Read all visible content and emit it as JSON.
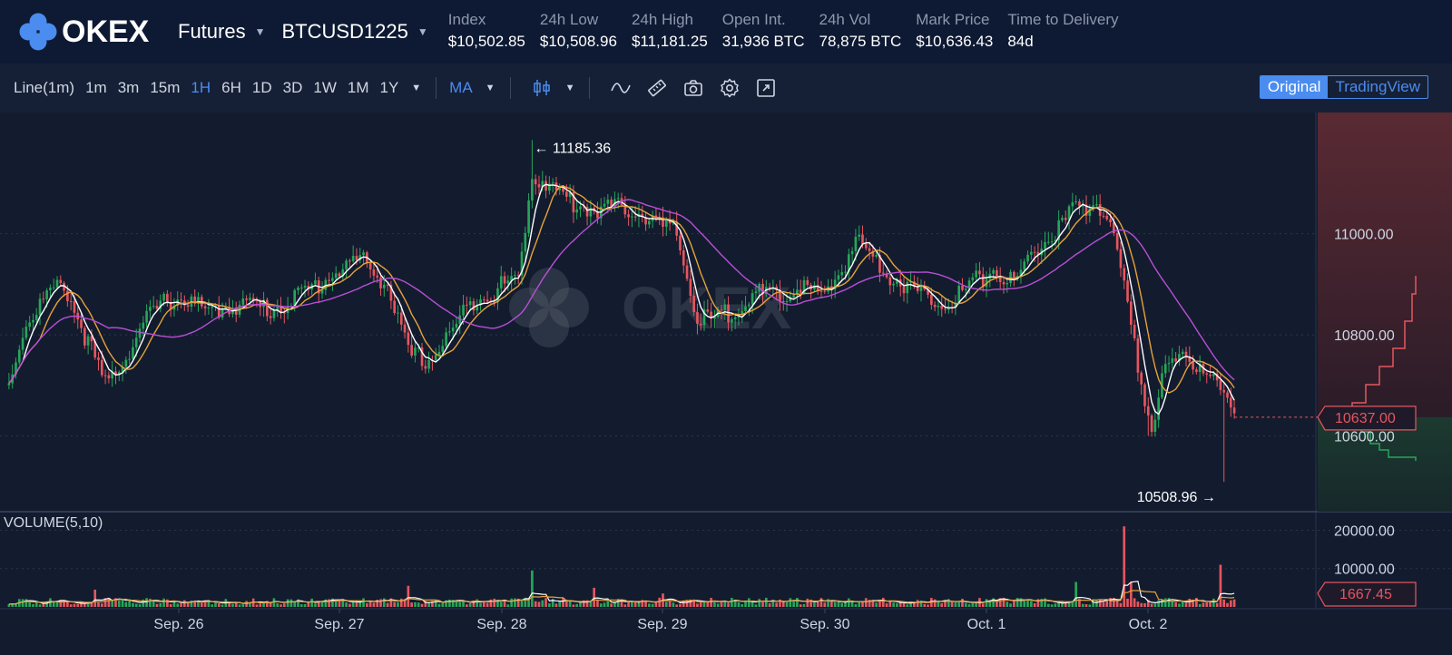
{
  "brand": {
    "name": "OKEX"
  },
  "header": {
    "product": "Futures",
    "contract": "BTCUSD1225",
    "stats": [
      {
        "label": "Index",
        "value": "$10,502.85"
      },
      {
        "label": "24h Low",
        "value": "$10,508.96"
      },
      {
        "label": "24h High",
        "value": "$11,181.25"
      },
      {
        "label": "Open Int.",
        "value": "31,936 BTC"
      },
      {
        "label": "24h Vol",
        "value": "78,875 BTC"
      },
      {
        "label": "Mark Price",
        "value": "$10,636.43"
      },
      {
        "label": "Time to Delivery",
        "value": "84d"
      }
    ]
  },
  "toolbar": {
    "timeframes": [
      "Line(1m)",
      "1m",
      "3m",
      "15m",
      "1H",
      "6H",
      "1D",
      "3D",
      "1W",
      "1M",
      "1Y"
    ],
    "active_timeframe": "1H",
    "indicator": "MA",
    "icons": [
      "candlestick-icon",
      "line-tool-icon",
      "ruler-icon",
      "camera-icon",
      "settings-icon",
      "fullscreen-icon"
    ],
    "view_original": "Original",
    "view_tradingview": "TradingView",
    "active_view": "Original"
  },
  "colors": {
    "up": "#26a65b",
    "down": "#e5565f",
    "ma_white": "#ffffff",
    "ma_orange": "#e6a23c",
    "ma_purple": "#b84fd6",
    "accent": "#4a8cf0",
    "background": "#131c2e"
  },
  "chart_data": {
    "type": "candlestick",
    "symbol": "BTCUSD1225",
    "interval": "1H",
    "watermark": "OKEX",
    "price_axis": {
      "ticks": [
        11000,
        10800,
        10600
      ],
      "tick_labels": [
        "11000.00",
        "10800.00",
        "10600.00"
      ],
      "ylim": [
        10450,
        11240
      ]
    },
    "x_labels": [
      "Sep. 26",
      "Sep. 27",
      "Sep. 28",
      "Sep. 29",
      "Sep. 30",
      "Oct. 1",
      "Oct. 2"
    ],
    "high_marker": "11185.36",
    "low_marker": "10508.96",
    "last_price": "10637.00",
    "price_anchors": [
      [
        0,
        10700
      ],
      [
        4,
        10810
      ],
      [
        10,
        10870
      ],
      [
        16,
        10900
      ],
      [
        22,
        10800
      ],
      [
        28,
        10700
      ],
      [
        34,
        10760
      ],
      [
        40,
        10830
      ],
      [
        46,
        10870
      ],
      [
        52,
        10870
      ],
      [
        58,
        10840
      ],
      [
        64,
        10860
      ],
      [
        70,
        10860
      ],
      [
        76,
        10850
      ],
      [
        82,
        10870
      ],
      [
        88,
        10890
      ],
      [
        96,
        10930
      ],
      [
        102,
        10950
      ],
      [
        110,
        10900
      ],
      [
        116,
        10760
      ],
      [
        122,
        10750
      ],
      [
        128,
        10800
      ],
      [
        136,
        10880
      ],
      [
        140,
        10880
      ],
      [
        144,
        10900
      ],
      [
        148,
        10910
      ],
      [
        152,
        11120
      ],
      [
        158,
        11090
      ],
      [
        164,
        11060
      ],
      [
        170,
        11050
      ],
      [
        176,
        11050
      ],
      [
        182,
        11050
      ],
      [
        188,
        11020
      ],
      [
        194,
        11000
      ],
      [
        200,
        10830
      ],
      [
        206,
        10830
      ],
      [
        212,
        10860
      ],
      [
        218,
        10880
      ],
      [
        224,
        10870
      ],
      [
        230,
        10900
      ],
      [
        236,
        10870
      ],
      [
        242,
        10930
      ],
      [
        246,
        10990
      ],
      [
        250,
        10960
      ],
      [
        256,
        10920
      ],
      [
        262,
        10890
      ],
      [
        268,
        10870
      ],
      [
        274,
        10870
      ],
      [
        280,
        10900
      ],
      [
        286,
        10930
      ],
      [
        292,
        10900
      ],
      [
        298,
        10970
      ],
      [
        304,
        11000
      ],
      [
        310,
        11050
      ],
      [
        316,
        11060
      ],
      [
        320,
        11020
      ],
      [
        324,
        10900
      ],
      [
        328,
        10730
      ],
      [
        332,
        10620
      ],
      [
        336,
        10740
      ],
      [
        342,
        10750
      ],
      [
        348,
        10740
      ],
      [
        352,
        10680
      ],
      [
        356,
        10637
      ]
    ],
    "volume": {
      "label": "VOLUME(5,10)",
      "ticks": [
        20000,
        10000
      ],
      "tick_labels": [
        "20000.00",
        "10000.00"
      ],
      "ylim": [
        0,
        22000
      ],
      "last": "1667.45",
      "spikes": [
        [
          25,
          4500
        ],
        [
          116,
          5500
        ],
        [
          152,
          9500
        ],
        [
          170,
          5000
        ],
        [
          190,
          3500
        ],
        [
          310,
          6500
        ],
        [
          324,
          21000
        ],
        [
          326,
          6500
        ],
        [
          352,
          11000
        ]
      ]
    },
    "series": [
      {
        "name": "MA fast",
        "color": "#ffffff"
      },
      {
        "name": "MA mid",
        "color": "#e6a23c"
      },
      {
        "name": "MA slow",
        "color": "#b84fd6"
      }
    ]
  }
}
